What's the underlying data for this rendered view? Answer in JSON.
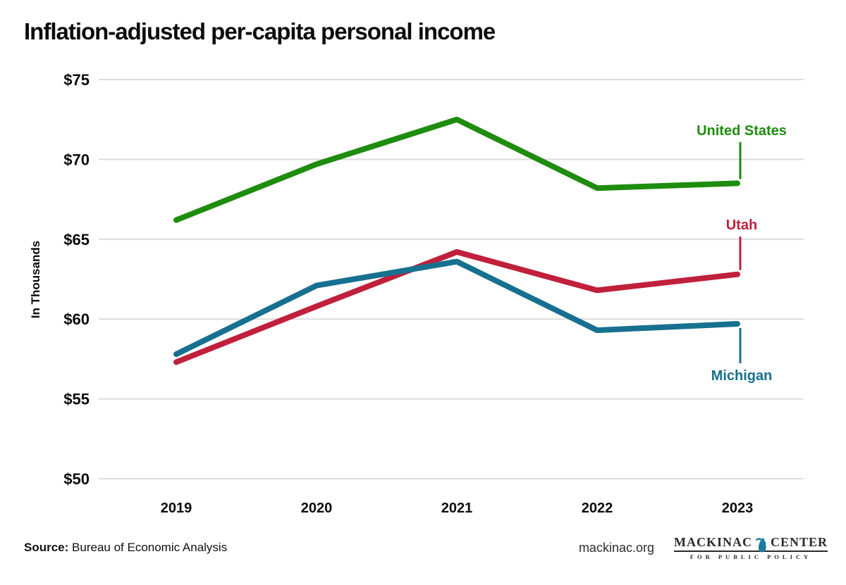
{
  "title": "Inflation-adjusted per-capita personal income",
  "chart_data": {
    "type": "line",
    "title": "Inflation-adjusted per-capita personal income",
    "xlabel": "",
    "ylabel": "In Thousands",
    "x_categories": [
      "2019",
      "2020",
      "2021",
      "2022",
      "2023"
    ],
    "ytick_labels": [
      "$75",
      "$70",
      "$65",
      "$60",
      "$55",
      "$50"
    ],
    "ytick_values": [
      75,
      70,
      65,
      60,
      55,
      50
    ],
    "ylim": [
      50,
      75
    ],
    "grid": "horizontal-only",
    "legend_position": "end-of-line-labels",
    "series": [
      {
        "name": "United States",
        "color": "#1e8c0e",
        "values": [
          66.2,
          69.7,
          72.5,
          68.2,
          68.5
        ]
      },
      {
        "name": "Utah",
        "color": "#c0203c",
        "values": [
          57.3,
          60.8,
          64.2,
          61.8,
          62.8
        ]
      },
      {
        "name": "Michigan",
        "color": "#17708f",
        "values": [
          57.8,
          62.1,
          63.6,
          59.3,
          59.7
        ]
      }
    ]
  },
  "footer": {
    "source_label": "Source:",
    "source_text": "Bureau of Economic Analysis",
    "website": "mackinac.org",
    "logo": {
      "word_left": "MACKINAC",
      "word_right": "CENTER",
      "subline": "FOR PUBLIC POLICY",
      "mitten_color": "#1d7a9c"
    }
  },
  "colors": {
    "grid": "#dcdcdc",
    "text": "#0b0b0b",
    "us_green": "#1e8c0e",
    "utah_red": "#c0203c",
    "michigan_teal": "#17708f"
  }
}
